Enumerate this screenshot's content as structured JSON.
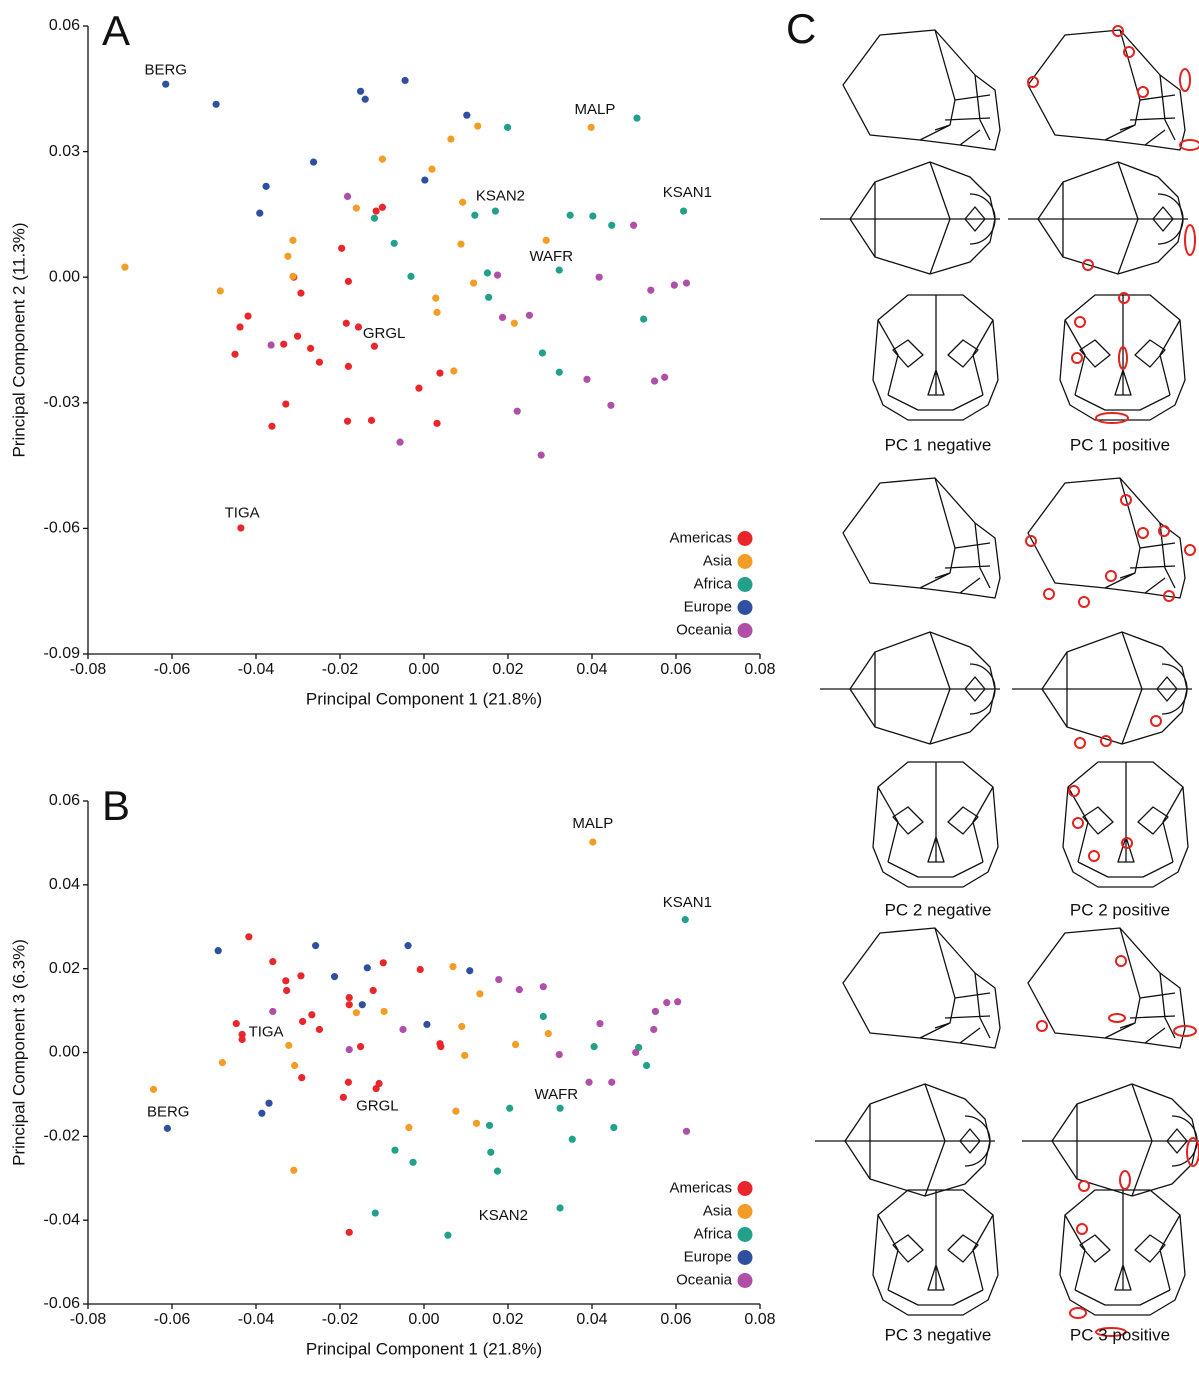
{
  "chart_data": [
    {
      "type": "scatter",
      "panel": "A",
      "xlabel": "Principal Component 1 (21.8%)",
      "ylabel": "Principal Component 2 (11.3%)",
      "xlim": [
        -0.08,
        0.08
      ],
      "ylim": [
        -0.09,
        0.06
      ],
      "xticks": [
        -0.08,
        -0.06,
        -0.04,
        -0.02,
        {
          "value": 0,
          "label": "0.00"
        },
        0.02,
        0.04,
        0.06,
        0.08
      ],
      "yticks": [
        -0.09,
        -0.06,
        -0.03,
        {
          "value": 0,
          "label": "0.00"
        },
        0.03,
        0.06
      ],
      "grid": false,
      "legend": "lower right",
      "series": [
        {
          "name": "Americas",
          "color": "#e8262b",
          "x": [
            -0.0436,
            -0.0362,
            -0.0329,
            -0.045,
            -0.0438,
            -0.0419,
            -0.0334,
            -0.0301,
            -0.027,
            -0.0249,
            -0.0293,
            -0.031,
            -0.0196,
            -0.018,
            -0.0099,
            -0.0114,
            -0.0185,
            -0.018,
            -0.0182,
            -0.0125,
            -0.0156,
            -0.0118,
            -0.0012,
            0.0038,
            0.0031
          ],
          "y": [
            -0.0599,
            -0.0356,
            -0.0303,
            -0.0184,
            -0.0119,
            -0.0093,
            -0.016,
            -0.0141,
            -0.017,
            -0.0203,
            -0.0038,
            0.0,
            0.0069,
            -0.001,
            0.0167,
            0.0158,
            -0.011,
            -0.0213,
            -0.0344,
            -0.0342,
            -0.0119,
            -0.0165,
            -0.0265,
            -0.0229,
            -0.0349
          ]
        },
        {
          "name": "Asia",
          "color": "#f39c26",
          "x": [
            -0.0712,
            -0.0485,
            -0.0312,
            -0.0324,
            -0.0312,
            -0.0161,
            -0.0099,
            0.0019,
            0.0064,
            0.0128,
            0.0092,
            0.0088,
            0.0028,
            0.0031,
            0.0118,
            0.0071,
            0.0215,
            0.0291,
            0.0398
          ],
          "y": [
            0.0024,
            -0.0033,
            0.0088,
            0.005,
            0.0002,
            0.0165,
            0.0282,
            0.0258,
            0.033,
            0.0361,
            0.0179,
            0.0079,
            -0.005,
            -0.0084,
            -0.0014,
            -0.0224,
            -0.011,
            0.0088,
            0.0358
          ]
        },
        {
          "name": "Africa",
          "color": "#21a08a",
          "x": [
            -0.0118,
            -0.0071,
            -0.0031,
            0.0151,
            0.0121,
            0.017,
            0.0199,
            0.0154,
            0.0282,
            0.0322,
            0.0348,
            0.0402,
            0.0447,
            0.0322,
            0.0507,
            0.0523,
            0.0618
          ],
          "y": [
            0.0141,
            0.0081,
            0.0002,
            0.001,
            0.0148,
            0.0158,
            0.0358,
            -0.0048,
            -0.0181,
            -0.0227,
            0.0148,
            0.0146,
            0.0124,
            0.0017,
            0.038,
            -0.01,
            0.0158
          ]
        },
        {
          "name": "Europe",
          "color": "#2f4fa0",
          "x": [
            -0.0615,
            -0.0495,
            -0.0151,
            -0.014,
            -0.0045,
            0.0102,
            -0.0263,
            -0.0376,
            -0.0391,
            0.0002
          ],
          "y": [
            0.0461,
            0.0413,
            0.0444,
            0.0425,
            0.047,
            0.0387,
            0.0275,
            0.0217,
            0.0153,
            0.0232
          ]
        },
        {
          "name": "Oceania",
          "color": "#b04fa8",
          "x": [
            -0.0182,
            -0.0364,
            -0.0057,
            0.0175,
            0.0187,
            0.0251,
            0.0222,
            0.0279,
            0.0388,
            0.0417,
            0.0445,
            0.0499,
            0.054,
            0.0549,
            0.0573,
            0.0596,
            0.0625
          ],
          "y": [
            0.0193,
            -0.0162,
            -0.0394,
            0.0005,
            -0.0096,
            -0.0091,
            -0.032,
            -0.0425,
            -0.0244,
            0.0,
            -0.0306,
            0.0124,
            -0.0031,
            -0.0248,
            -0.0239,
            -0.0019,
            -0.0014
          ]
        }
      ],
      "annotations": [
        {
          "text": "BERG",
          "x": -0.0615,
          "y": 0.0494
        },
        {
          "text": "MALP",
          "x": 0.0407,
          "y": 0.0399
        },
        {
          "text": "KSAN2",
          "x": 0.0182,
          "y": 0.0193
        },
        {
          "text": "KSAN1",
          "x": 0.0627,
          "y": 0.0201
        },
        {
          "text": "WAFR",
          "x": 0.0303,
          "y": 0.0048
        },
        {
          "text": "GRGL",
          "x": -0.0095,
          "y": -0.0136
        },
        {
          "text": "TIGA",
          "x": -0.0433,
          "y": -0.0564
        }
      ]
    },
    {
      "type": "scatter",
      "panel": "B",
      "xlabel": "Principal Component 1 (21.8%)",
      "ylabel": "Principal Component 3 (6.3%)",
      "xlim": [
        -0.08,
        0.08
      ],
      "ylim": [
        -0.06,
        0.06
      ],
      "xticks": [
        -0.08,
        -0.06,
        -0.04,
        -0.02,
        {
          "value": 0,
          "label": "0.00"
        },
        0.02,
        0.04,
        0.06,
        0.08
      ],
      "yticks": [
        -0.06,
        -0.04,
        -0.02,
        {
          "value": 0,
          "label": "0.00"
        },
        0.02,
        0.04,
        0.06
      ],
      "grid": false,
      "legend": "lower right",
      "series": [
        {
          "name": "Americas",
          "color": "#e8262b",
          "x": [
            -0.0417,
            -0.036,
            -0.0329,
            -0.0327,
            -0.0293,
            -0.0289,
            -0.0447,
            -0.0433,
            -0.0433,
            -0.0249,
            -0.0267,
            -0.0178,
            -0.0178,
            -0.0121,
            -0.0097,
            -0.0009,
            -0.0151,
            -0.0192,
            -0.018,
            -0.0114,
            -0.0107,
            0.0038,
            0.004,
            -0.0178,
            -0.0291
          ],
          "y": [
            0.0276,
            0.0217,
            0.0171,
            0.0148,
            0.0183,
            0.0074,
            0.0069,
            0.0043,
            0.0031,
            0.0055,
            0.009,
            0.0131,
            0.0114,
            0.0148,
            0.0214,
            0.0198,
            0.0014,
            -0.0107,
            -0.0071,
            -0.0086,
            -0.0074,
            0.0021,
            0.0014,
            -0.0429,
            -0.006
          ]
        },
        {
          "name": "Asia",
          "color": "#f39c26",
          "x": [
            -0.0644,
            -0.048,
            -0.0322,
            -0.0308,
            -0.031,
            -0.0161,
            -0.0095,
            -0.0036,
            0.0069,
            0.009,
            0.0097,
            0.0133,
            0.0125,
            0.0076,
            0.0218,
            0.0296,
            0.0402
          ],
          "y": [
            -0.0088,
            -0.0024,
            0.0017,
            -0.0031,
            -0.0281,
            0.0095,
            0.0098,
            -0.0179,
            0.0205,
            0.0062,
            -0.0007,
            0.014,
            -0.0169,
            -0.014,
            0.0019,
            0.0045,
            0.0502
          ]
        },
        {
          "name": "Africa",
          "color": "#21a08a",
          "x": [
            -0.0069,
            -0.0026,
            -0.0116,
            0.0057,
            0.0156,
            0.0159,
            0.0175,
            0.0204,
            0.0284,
            0.0324,
            0.0353,
            0.0324,
            0.0405,
            0.0452,
            0.0511,
            0.053,
            0.0622
          ],
          "y": [
            -0.0233,
            -0.0262,
            -0.0383,
            -0.0436,
            -0.0174,
            -0.0238,
            -0.0283,
            -0.0133,
            0.0086,
            -0.0133,
            -0.0207,
            -0.0371,
            0.0014,
            -0.0179,
            0.0012,
            -0.0031,
            0.0317
          ]
        },
        {
          "name": "Europe",
          "color": "#2f4fa0",
          "x": [
            -0.0611,
            -0.049,
            -0.0369,
            -0.0386,
            -0.0258,
            -0.0213,
            -0.0147,
            -0.0135,
            -0.0038,
            0.0109,
            0.0007
          ],
          "y": [
            -0.0181,
            0.0243,
            -0.0121,
            -0.0145,
            0.0255,
            0.0181,
            0.0114,
            0.0202,
            0.0255,
            0.0195,
            0.0067
          ]
        },
        {
          "name": "Oceania",
          "color": "#b04fa8",
          "x": [
            -0.036,
            -0.0178,
            -0.005,
            0.0178,
            0.0227,
            0.0284,
            0.0322,
            0.0393,
            0.0419,
            0.0447,
            0.0504,
            0.0547,
            0.0551,
            0.0578,
            0.0604,
            0.0625
          ],
          "y": [
            0.0098,
            0.0007,
            0.0055,
            0.0174,
            0.015,
            0.0157,
            -0.0005,
            -0.0071,
            0.0069,
            -0.0071,
            0.0,
            0.0055,
            0.0098,
            0.0119,
            0.0121,
            -0.0188
          ]
        }
      ],
      "annotations": [
        {
          "text": "MALP",
          "x": 0.0402,
          "y": 0.0545
        },
        {
          "text": "KSAN1",
          "x": 0.0627,
          "y": 0.0357
        },
        {
          "text": "TIGA",
          "x": -0.0376,
          "y": 0.0048
        },
        {
          "text": "BERG",
          "x": -0.0609,
          "y": -0.0143
        },
        {
          "text": "GRGL",
          "x": -0.0111,
          "y": -0.0129
        },
        {
          "text": "WAFR",
          "x": 0.0315,
          "y": -0.0102
        },
        {
          "text": "KSAN2",
          "x": 0.0189,
          "y": -0.039
        }
      ]
    }
  ],
  "panel_c": {
    "panel": "C",
    "captions": [
      "PC 1 negative",
      "PC 1 positive",
      "PC 2 negative",
      "PC 2 positive",
      "PC 3 negative",
      "PC 3 positive"
    ]
  }
}
